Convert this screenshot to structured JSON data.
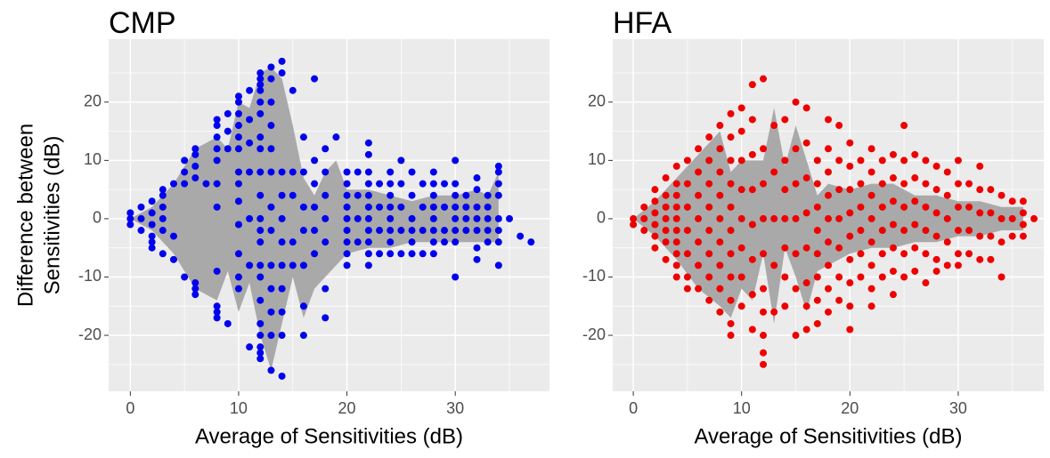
{
  "chart_data": [
    {
      "type": "scatter",
      "title": "CMP",
      "x_label": "Average of Sensitivities (dB)",
      "y_label": [
        "Difference between",
        "Sensitivities (dB)"
      ],
      "color": "#0000ee",
      "grid": true,
      "xlim": [
        -2,
        38.7
      ],
      "ylim": [
        -29.6,
        30.8
      ],
      "xticks": [
        0,
        10,
        20,
        30
      ],
      "yticks": [
        -20,
        -10,
        0,
        10,
        20
      ],
      "band": {
        "color": "#a9a9a9",
        "x": [
          0,
          2,
          4,
          6,
          8,
          9,
          10,
          11,
          12,
          13,
          14,
          15,
          16,
          17,
          18,
          19,
          20,
          22,
          24,
          26,
          28,
          30,
          32,
          33,
          34
        ],
        "upper": [
          0,
          2,
          6,
          12,
          14,
          12,
          20,
          19,
          25,
          26,
          24,
          16,
          7,
          4,
          8,
          10,
          5,
          5,
          4,
          3,
          4,
          4,
          5,
          4,
          8
        ],
        "lower": [
          0,
          -2,
          -6,
          -12,
          -14,
          -9,
          -16,
          -11,
          -20,
          -26,
          -18,
          -10,
          -17,
          -12,
          -10,
          -8,
          -6,
          -5,
          -5,
          -4,
          -4,
          -4,
          -4,
          -4,
          -4
        ]
      },
      "points": [
        {
          "x": 0,
          "y": [
            1,
            0,
            -1
          ]
        },
        {
          "x": 1,
          "y": [
            2,
            0,
            -2
          ]
        },
        {
          "x": 2,
          "y": [
            3,
            1,
            -1,
            -3,
            -4,
            -5
          ]
        },
        {
          "x": 3,
          "y": [
            5,
            4,
            2,
            0,
            -2,
            -6
          ]
        },
        {
          "x": 4,
          "y": [
            6,
            -3,
            -7
          ]
        },
        {
          "x": 5,
          "y": [
            10,
            8,
            6,
            -10
          ]
        },
        {
          "x": 6,
          "y": [
            12,
            11,
            9,
            7,
            -11,
            -12,
            -13
          ]
        },
        {
          "x": 7,
          "y": [
            6
          ]
        },
        {
          "x": 8,
          "y": [
            17,
            16,
            14,
            12,
            10,
            6,
            2,
            -9,
            -15,
            -16,
            -17
          ]
        },
        {
          "x": 9,
          "y": [
            18,
            15,
            12,
            -18
          ]
        },
        {
          "x": 10,
          "y": [
            21,
            20,
            18,
            16,
            14,
            12,
            8,
            6,
            3,
            -1,
            -6,
            -10,
            -12
          ]
        },
        {
          "x": 11,
          "y": [
            22,
            17,
            13,
            8,
            0,
            -8,
            -22
          ]
        },
        {
          "x": 12,
          "y": [
            25,
            24,
            23,
            22,
            20,
            18,
            14,
            12,
            8,
            4,
            0,
            -2,
            -4,
            -8,
            -10,
            -14,
            -18,
            -20,
            -22,
            -23,
            -24
          ]
        },
        {
          "x": 13,
          "y": [
            26,
            24,
            20,
            16,
            12,
            8,
            2,
            -2,
            -8,
            -12,
            -16,
            -20,
            -26
          ]
        },
        {
          "x": 14,
          "y": [
            27,
            25,
            8,
            4,
            0,
            -4,
            -8,
            -12,
            -16,
            -20,
            -27
          ]
        },
        {
          "x": 15,
          "y": [
            22,
            8,
            4,
            -4,
            -8
          ]
        },
        {
          "x": 16,
          "y": [
            14,
            8,
            2,
            -2,
            -8,
            -15,
            -20
          ]
        },
        {
          "x": 17,
          "y": [
            24,
            10,
            6,
            2,
            -2,
            -6
          ]
        },
        {
          "x": 18,
          "y": [
            12,
            8,
            4,
            0,
            -4,
            -12,
            -17
          ]
        },
        {
          "x": 19,
          "y": [
            14
          ]
        },
        {
          "x": 20,
          "y": [
            8,
            6,
            4,
            2,
            0,
            -2,
            -4,
            -6,
            -8
          ]
        },
        {
          "x": 21,
          "y": [
            8,
            4,
            0,
            -4
          ]
        },
        {
          "x": 22,
          "y": [
            13,
            11,
            8,
            6,
            4,
            2,
            0,
            -2,
            -4,
            -6,
            -8
          ]
        },
        {
          "x": 23,
          "y": [
            6,
            2,
            -2,
            -6
          ]
        },
        {
          "x": 24,
          "y": [
            8,
            6,
            4,
            2,
            0,
            -2,
            -4,
            -6
          ]
        },
        {
          "x": 25,
          "y": [
            10,
            6,
            2,
            -2,
            -6
          ]
        },
        {
          "x": 26,
          "y": [
            8,
            4,
            0,
            -2,
            -4,
            -6
          ]
        },
        {
          "x": 27,
          "y": [
            6,
            2,
            -2,
            -6
          ]
        },
        {
          "x": 28,
          "y": [
            8,
            6,
            4,
            2,
            0,
            -2,
            -4,
            -6
          ]
        },
        {
          "x": 29,
          "y": [
            6,
            2,
            -2,
            -4
          ]
        },
        {
          "x": 30,
          "y": [
            10,
            6,
            4,
            2,
            0,
            -2,
            -4,
            -10
          ]
        },
        {
          "x": 31,
          "y": [
            4,
            2,
            0,
            -2
          ]
        },
        {
          "x": 32,
          "y": [
            7,
            5,
            2,
            0,
            -2,
            -5,
            -7
          ]
        },
        {
          "x": 33,
          "y": [
            4,
            2,
            0,
            -2,
            -4
          ]
        },
        {
          "x": 34,
          "y": [
            9,
            8,
            6,
            4,
            0,
            -2,
            -4,
            -8
          ]
        },
        {
          "x": 35,
          "y": [
            0
          ]
        },
        {
          "x": 36,
          "y": [
            -3
          ]
        },
        {
          "x": 37,
          "y": [
            -4
          ]
        }
      ]
    },
    {
      "type": "scatter",
      "title": "HFA",
      "x_label": "Average of Sensitivities (dB)",
      "color": "#ee0000",
      "grid": true,
      "xlim": [
        -1.9,
        37.9
      ],
      "ylim": [
        -29.6,
        30.8
      ],
      "xticks": [
        0,
        10,
        20,
        30
      ],
      "yticks": [
        -20,
        -10,
        0,
        10,
        20
      ],
      "band": {
        "color": "#a9a9a9",
        "x": [
          0,
          2,
          4,
          6,
          8,
          9,
          10,
          11,
          12,
          13,
          14,
          15,
          16,
          17,
          18,
          20,
          22,
          24,
          26,
          28,
          30,
          32,
          34,
          36
        ],
        "upper": [
          0,
          3,
          7,
          11,
          15,
          8,
          10,
          10,
          10,
          19,
          9,
          16,
          10,
          4,
          6,
          5,
          6,
          6,
          4,
          4,
          3,
          3,
          2,
          2
        ],
        "lower": [
          0,
          -3,
          -7,
          -12,
          -15,
          -17,
          -12,
          -14,
          -6,
          -18,
          -5,
          -10,
          -16,
          -9,
          -8,
          -6,
          -5,
          -5,
          -4,
          -4,
          -3,
          -3,
          -2,
          -2
        ]
      },
      "points": [
        {
          "x": 0,
          "y": [
            0,
            -1
          ]
        },
        {
          "x": 1,
          "y": [
            2,
            0,
            -2
          ]
        },
        {
          "x": 2,
          "y": [
            5,
            3,
            1,
            -1,
            -3,
            -5
          ]
        },
        {
          "x": 3,
          "y": [
            7,
            4,
            2,
            0,
            -2,
            -4,
            -7
          ]
        },
        {
          "x": 4,
          "y": [
            9,
            6,
            4,
            2,
            0,
            -2,
            -4,
            -6,
            -8,
            -10
          ]
        },
        {
          "x": 5,
          "y": [
            10,
            6,
            2,
            -2,
            -6,
            -10,
            -12
          ]
        },
        {
          "x": 6,
          "y": [
            12,
            8,
            4,
            0,
            -4,
            -8,
            -12
          ]
        },
        {
          "x": 7,
          "y": [
            14,
            10,
            6,
            2,
            -2,
            -6,
            -10,
            -14
          ]
        },
        {
          "x": 8,
          "y": [
            16,
            12,
            8,
            4,
            0,
            -4,
            -8,
            -12,
            -16
          ]
        },
        {
          "x": 9,
          "y": [
            18,
            14,
            10,
            6,
            2,
            -2,
            -6,
            -10,
            -14,
            -18,
            -20
          ]
        },
        {
          "x": 10,
          "y": [
            19,
            15,
            10,
            5,
            0,
            -5,
            -10,
            -15
          ]
        },
        {
          "x": 11,
          "y": [
            23,
            17,
            11,
            5,
            -1,
            -7,
            -13,
            -19
          ]
        },
        {
          "x": 12,
          "y": [
            24,
            12,
            6,
            0,
            -6,
            -12,
            -16,
            -20,
            -23,
            -25
          ]
        },
        {
          "x": 13,
          "y": [
            16,
            8,
            0,
            -8,
            -16
          ]
        },
        {
          "x": 14,
          "y": [
            17,
            10,
            5,
            0,
            -5,
            -10,
            -15
          ]
        },
        {
          "x": 15,
          "y": [
            20,
            12,
            6,
            0,
            -6,
            -12,
            -20
          ]
        },
        {
          "x": 16,
          "y": [
            19,
            13,
            7,
            1,
            -5,
            -11,
            -15,
            -19
          ]
        },
        {
          "x": 17,
          "y": [
            10,
            6,
            2,
            -2,
            -6,
            -10,
            -14,
            -18
          ]
        },
        {
          "x": 18,
          "y": [
            17,
            12,
            8,
            4,
            0,
            -4,
            -8,
            -12,
            -16
          ]
        },
        {
          "x": 19,
          "y": [
            16,
            10,
            5,
            0,
            -5,
            -10,
            -14
          ]
        },
        {
          "x": 20,
          "y": [
            13,
            9,
            5,
            1,
            -3,
            -7,
            -11,
            -15,
            -19
          ]
        },
        {
          "x": 21,
          "y": [
            10,
            6,
            2,
            -2,
            -6,
            -10
          ]
        },
        {
          "x": 22,
          "y": [
            12,
            8,
            4,
            0,
            -4,
            -8,
            -12,
            -15
          ]
        },
        {
          "x": 23,
          "y": [
            10,
            6,
            2,
            -2,
            -6,
            -10
          ]
        },
        {
          "x": 24,
          "y": [
            11,
            7,
            3,
            -1,
            -5,
            -9,
            -13
          ]
        },
        {
          "x": 25,
          "y": [
            16,
            10,
            6,
            2,
            -2,
            -6,
            -10
          ]
        },
        {
          "x": 26,
          "y": [
            11,
            7,
            3,
            -1,
            -5,
            -9
          ]
        },
        {
          "x": 27,
          "y": [
            10,
            6,
            2,
            -2,
            -6,
            -11
          ]
        },
        {
          "x": 28,
          "y": [
            9,
            5,
            1,
            -3,
            -7,
            -9
          ]
        },
        {
          "x": 29,
          "y": [
            8,
            4,
            0,
            -4,
            -8
          ]
        },
        {
          "x": 30,
          "y": [
            10,
            6,
            2,
            -2,
            -6,
            -8
          ]
        },
        {
          "x": 31,
          "y": [
            6,
            2,
            -2,
            -6
          ]
        },
        {
          "x": 32,
          "y": [
            9,
            5,
            1,
            -3,
            -7
          ]
        },
        {
          "x": 33,
          "y": [
            5,
            1,
            -3,
            -7
          ]
        },
        {
          "x": 34,
          "y": [
            4,
            0,
            -4,
            -10
          ]
        },
        {
          "x": 35,
          "y": [
            3,
            0,
            -3
          ]
        },
        {
          "x": 36,
          "y": [
            3,
            1,
            -1,
            -3
          ]
        },
        {
          "x": 37,
          "y": [
            0
          ]
        }
      ]
    }
  ]
}
